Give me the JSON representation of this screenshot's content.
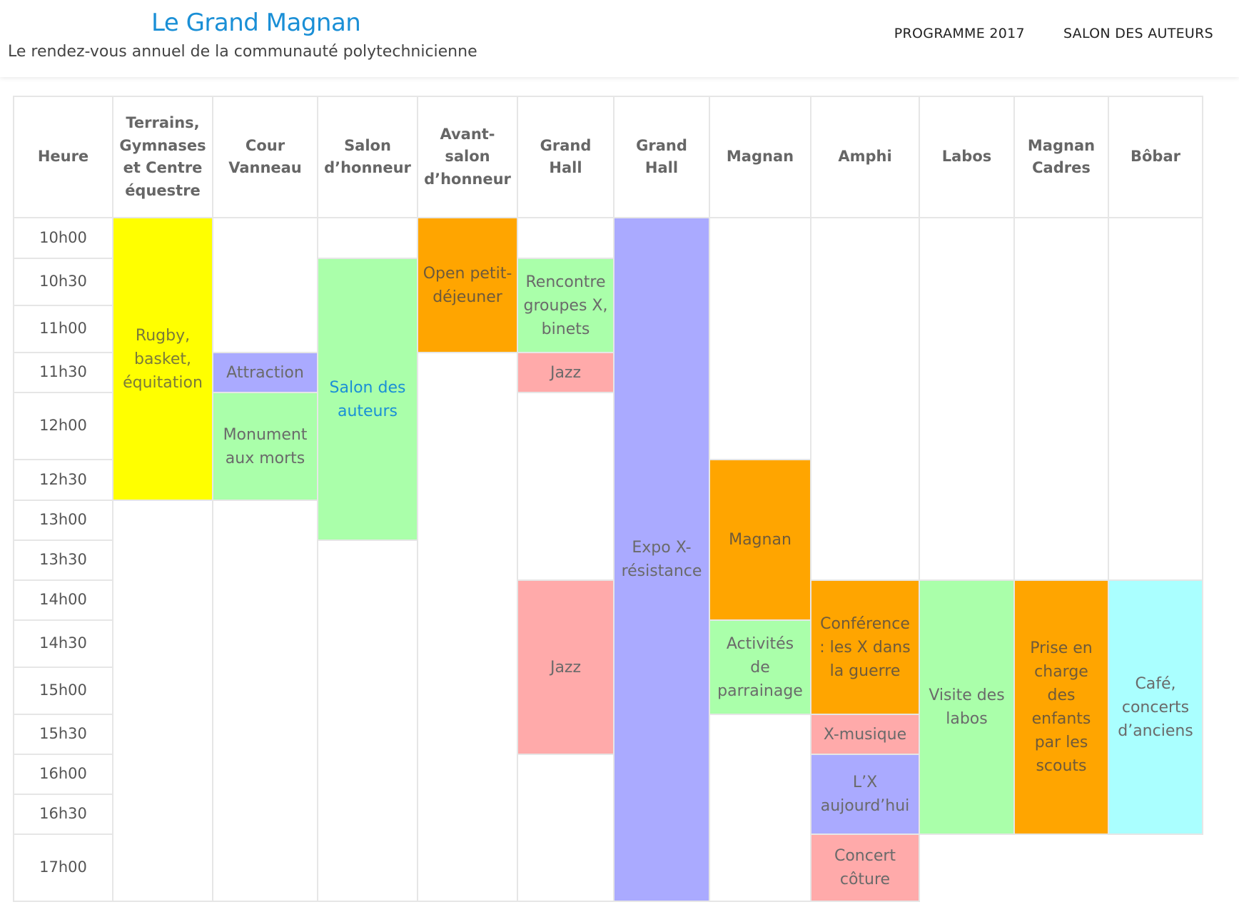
{
  "site": {
    "title": "Le Grand Magnan",
    "tagline": "Le rendez-vous annuel de la communauté polytechnicienne"
  },
  "nav": {
    "items": [
      "PROGRAMME 2017",
      "SALON DES AUTEURS"
    ]
  },
  "schedule": {
    "columns": [
      "Heure",
      "Terrains, Gymnases et Centre équestre",
      "Cour Vanneau",
      "Salon d’honneur",
      "Avant-salon d’honneur",
      "Grand Hall",
      "Grand Hall",
      "Magnan",
      "Amphi",
      "Labos",
      "Magnan Cadres",
      "Bôbar"
    ],
    "times": [
      "10h00",
      "10h30",
      "11h00",
      "11h30",
      "12h00",
      "12h30",
      "13h00",
      "13h30",
      "14h00",
      "14h30",
      "15h00",
      "15h30",
      "16h00",
      "16h30",
      "17h00"
    ],
    "events": [
      {
        "label": "Rugby, basket, équitation",
        "color": "#ffff00"
      },
      {
        "label": "Attraction",
        "color": "#aaaaff"
      },
      {
        "label": "Monument aux morts",
        "color": "#aaffaa"
      },
      {
        "label": "Salon des auteurs",
        "color": "#aaffaa"
      },
      {
        "label": "Open petit-déjeuner",
        "color": "#ffa500"
      },
      {
        "label": "Rencontre groupes X, binets",
        "color": "#aaffaa"
      },
      {
        "label": "Jazz",
        "color": "#ffaaaa"
      },
      {
        "label": "Jazz",
        "color": "#ffaaaa"
      },
      {
        "label": "Expo X-résistance",
        "color": "#aaaaff"
      },
      {
        "label": "Magnan",
        "color": "#ffa500"
      },
      {
        "label": "Activités de parrainage",
        "color": "#aaffaa"
      },
      {
        "label": "Conférence : les X dans la guerre",
        "color": "#ffa500"
      },
      {
        "label": "X-musique",
        "color": "#ffaaaa"
      },
      {
        "label": "L’X aujourd’hui",
        "color": "#aaaaff"
      },
      {
        "label": "Concert côture",
        "color": "#ffaaaa"
      },
      {
        "label": "Visite des labos",
        "color": "#aaffaa"
      },
      {
        "label": "Prise en charge des enfants par les scouts",
        "color": "#ffa500"
      },
      {
        "label": "Café, concerts d’anciens",
        "color": "#aaffff"
      }
    ]
  }
}
